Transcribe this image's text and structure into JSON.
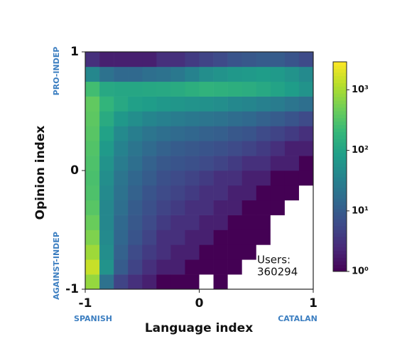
{
  "chart_data": {
    "type": "heatmap",
    "colormap": "viridis",
    "color_scale": "log",
    "xlabel": "Language index",
    "ylabel": "Opinion index",
    "x_extreme_labels": [
      "SPANISH",
      "CATALAN"
    ],
    "y_extreme_labels": [
      "AGAINST-INDEP",
      "PRO-INDEP"
    ],
    "annotation": [
      "Users:",
      "360294"
    ],
    "xlim": [
      -1,
      1
    ],
    "ylim": [
      -1,
      1
    ],
    "xticks": [
      -1,
      0,
      1
    ],
    "yticks": [
      -1,
      0,
      1
    ],
    "xbins": [
      -1,
      -0.875,
      -0.75,
      -0.625,
      -0.5,
      -0.375,
      -0.25,
      -0.125,
      0,
      0.125,
      0.25,
      0.375,
      0.5,
      0.625,
      0.75,
      0.875,
      1
    ],
    "ybins": [
      -1,
      -0.875,
      -0.75,
      -0.625,
      -0.5,
      -0.375,
      -0.25,
      -0.125,
      0,
      0.125,
      0.25,
      0.375,
      0.5,
      0.625,
      0.75,
      0.875,
      1
    ],
    "counts": [
      [
        800,
        20,
        5,
        3,
        2,
        1,
        1,
        1,
        0,
        1,
        0,
        0,
        0,
        0,
        0,
        0
      ],
      [
        1500,
        60,
        10,
        5,
        3,
        2,
        2,
        1,
        1,
        1,
        1,
        0,
        0,
        0,
        0,
        0
      ],
      [
        900,
        50,
        12,
        6,
        4,
        3,
        2,
        2,
        1,
        1,
        1,
        1,
        0,
        0,
        0,
        0
      ],
      [
        600,
        45,
        14,
        8,
        5,
        3,
        3,
        2,
        2,
        1,
        1,
        1,
        1,
        0,
        0,
        0
      ],
      [
        450,
        40,
        15,
        9,
        6,
        4,
        3,
        3,
        2,
        2,
        1,
        1,
        1,
        0,
        0,
        0
      ],
      [
        350,
        40,
        18,
        10,
        7,
        5,
        4,
        3,
        3,
        2,
        2,
        1,
        1,
        1,
        0,
        0
      ],
      [
        300,
        45,
        20,
        12,
        8,
        6,
        5,
        4,
        3,
        3,
        2,
        2,
        1,
        1,
        1,
        0
      ],
      [
        280,
        50,
        22,
        14,
        10,
        7,
        6,
        5,
        4,
        3,
        3,
        2,
        2,
        1,
        1,
        1
      ],
      [
        300,
        60,
        28,
        18,
        12,
        9,
        8,
        7,
        6,
        5,
        4,
        3,
        3,
        2,
        2,
        1
      ],
      [
        320,
        75,
        35,
        22,
        16,
        12,
        10,
        9,
        8,
        7,
        6,
        5,
        4,
        3,
        2,
        2
      ],
      [
        350,
        95,
        45,
        30,
        22,
        18,
        16,
        14,
        12,
        11,
        9,
        8,
        6,
        5,
        4,
        3
      ],
      [
        380,
        130,
        70,
        50,
        38,
        32,
        28,
        25,
        22,
        20,
        17,
        15,
        12,
        10,
        8,
        6
      ],
      [
        400,
        180,
        120,
        90,
        80,
        70,
        65,
        60,
        55,
        50,
        42,
        38,
        32,
        28,
        22,
        18
      ],
      [
        250,
        120,
        110,
        110,
        115,
        120,
        130,
        150,
        170,
        160,
        150,
        140,
        120,
        100,
        80,
        60
      ],
      [
        40,
        20,
        15,
        15,
        18,
        20,
        25,
        35,
        50,
        60,
        70,
        75,
        80,
        75,
        60,
        45
      ],
      [
        3,
        2,
        2,
        2,
        2,
        3,
        3,
        4,
        5,
        6,
        8,
        9,
        10,
        10,
        8,
        6
      ]
    ],
    "clim": [
      1,
      2900
    ],
    "cticks": [
      {
        "value": 1,
        "label": "10⁰"
      },
      {
        "value": 10,
        "label": "10¹"
      },
      {
        "value": 100,
        "label": "10²"
      },
      {
        "value": 1000,
        "label": "10³"
      }
    ]
  }
}
